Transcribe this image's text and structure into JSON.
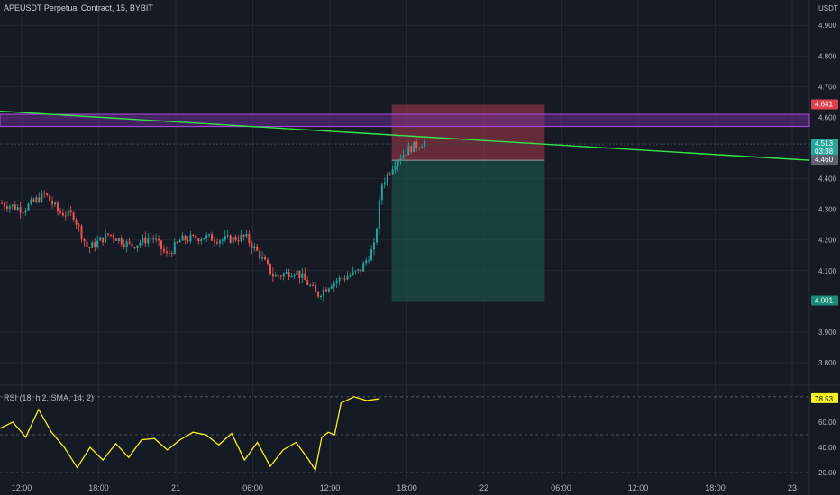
{
  "header": {
    "title": "APEUSDT Perpetual Contract, 15, BYBIT",
    "currency": "USDT"
  },
  "indicator": {
    "label": "RSI (18, hl2, SMA, 14, 2)"
  },
  "colors": {
    "background": "#161a25",
    "grid": "#232733",
    "up": "#26a69a",
    "down": "#ef5350",
    "trendline": "#39e34b",
    "zone_fill": "#7b2fa8",
    "zone_stroke": "#b04ce6",
    "stop_zone": "#c8404f",
    "target_zone": "#1f5f55",
    "rsi_line": "#f5f020"
  },
  "chart_data": [
    {
      "type": "candlestick",
      "title": "APEUSDT Perpetual Contract, 15, BYBIT",
      "y_axis": {
        "unit": "USDT",
        "ticks": [
          "4.900",
          "4.800",
          "4.700",
          "4.600",
          "4.400",
          "4.300",
          "4.200",
          "4.100",
          "3.900",
          "3.800"
        ],
        "ylim": [
          3.75,
          4.93
        ]
      },
      "x_axis": {
        "ticks": [
          "12:00",
          "18:00",
          "21",
          "06:00",
          "12:00",
          "18:00",
          "22",
          "06:00",
          "12:00",
          "18:00",
          "23"
        ]
      },
      "price_badges": [
        {
          "value": "4.641",
          "kind": "stop"
        },
        {
          "value": "4.513",
          "sub": "03:38",
          "kind": "last"
        },
        {
          "value": "4.460",
          "kind": "entry"
        },
        {
          "value": "4.001",
          "kind": "target"
        }
      ],
      "trendline": {
        "from_price": 4.62,
        "to_price": 4.46
      },
      "resistance_zone": {
        "low": 4.57,
        "high": 4.61
      },
      "position": {
        "entry": 4.46,
        "stop": 4.641,
        "target": 4.001
      },
      "close_path": [
        [
          0,
          4.32
        ],
        [
          0.03,
          4.3
        ],
        [
          0.06,
          4.35
        ],
        [
          0.08,
          4.29
        ],
        [
          0.1,
          4.28
        ],
        [
          0.12,
          4.17
        ],
        [
          0.15,
          4.22
        ],
        [
          0.18,
          4.18
        ],
        [
          0.21,
          4.21
        ],
        [
          0.23,
          4.15
        ],
        [
          0.25,
          4.2
        ],
        [
          0.28,
          4.21
        ],
        [
          0.31,
          4.2
        ],
        [
          0.34,
          4.21
        ],
        [
          0.36,
          4.15
        ],
        [
          0.38,
          4.08
        ],
        [
          0.41,
          4.1
        ],
        [
          0.43,
          4.05
        ],
        [
          0.44,
          4.02
        ],
        [
          0.46,
          4.06
        ],
        [
          0.48,
          4.08
        ],
        [
          0.5,
          4.1
        ],
        [
          0.52,
          4.18
        ],
        [
          0.53,
          4.38
        ],
        [
          0.55,
          4.46
        ],
        [
          0.57,
          4.5
        ],
        [
          0.59,
          4.52
        ]
      ]
    },
    {
      "type": "line",
      "title": "RSI (18, hl2, SMA, 14, 2)",
      "y_axis": {
        "ticks": [
          "60.00",
          "40.00",
          "20.00"
        ],
        "ylim": [
          18,
          82
        ],
        "levels": [
          80,
          50,
          20
        ]
      },
      "last_value": "78.53",
      "x": [
        0,
        0.02,
        0.04,
        0.06,
        0.08,
        0.1,
        0.12,
        0.14,
        0.16,
        0.18,
        0.2,
        0.22,
        0.24,
        0.26,
        0.28,
        0.3,
        0.32,
        0.34,
        0.36,
        0.38,
        0.4,
        0.42,
        0.44,
        0.46,
        0.48,
        0.49,
        0.5,
        0.51,
        0.52,
        0.53,
        0.55,
        0.57,
        0.59
      ],
      "values": [
        55,
        60,
        48,
        70,
        52,
        40,
        24,
        40,
        30,
        43,
        32,
        46,
        47,
        38,
        46,
        52,
        50,
        42,
        51,
        30,
        44,
        25,
        38,
        44,
        30,
        22,
        48,
        52,
        50,
        75,
        80,
        77,
        78.5
      ]
    }
  ]
}
